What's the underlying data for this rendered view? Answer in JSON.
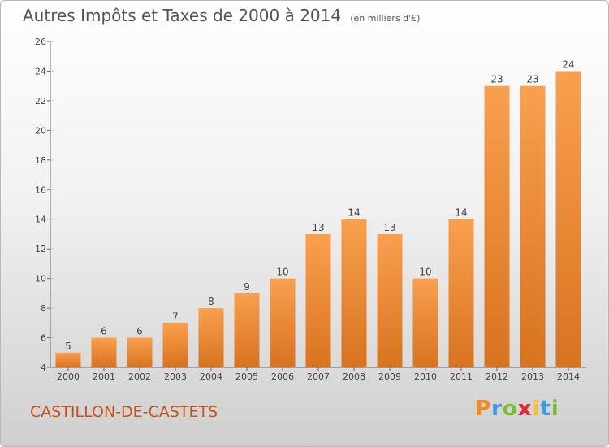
{
  "chart_data": {
    "type": "bar",
    "title": "Autres Impôts et Taxes de 2000 à 2014",
    "subtitle": "(en milliers d'€)",
    "categories": [
      "2000",
      "2001",
      "2002",
      "2003",
      "2004",
      "2005",
      "2006",
      "2007",
      "2008",
      "2009",
      "2010",
      "2011",
      "2012",
      "2013",
      "2014"
    ],
    "values": [
      5,
      6,
      6,
      7,
      8,
      9,
      10,
      13,
      14,
      13,
      10,
      14,
      23,
      23,
      24
    ],
    "ylim": [
      4,
      26
    ],
    "yticks": [
      4,
      6,
      8,
      10,
      12,
      14,
      16,
      18,
      20,
      22,
      24,
      26
    ],
    "grid": false,
    "bar_color_light": "#f9a04e",
    "bar_color_dark": "#d8731f"
  },
  "footer": {
    "commune": "CASTILLON-DE-CASTETS",
    "brand_letters": [
      "P",
      "r",
      "o",
      "x",
      "i",
      "t",
      "i"
    ],
    "brand_colors": [
      "#f28c1c",
      "#3b9be0",
      "#7bbf2a",
      "#e6262a",
      "#f6c21b",
      "#3b9be0",
      "#7bbf2a"
    ]
  },
  "colors": {
    "title": "#555555",
    "commune": "#c4531a"
  }
}
